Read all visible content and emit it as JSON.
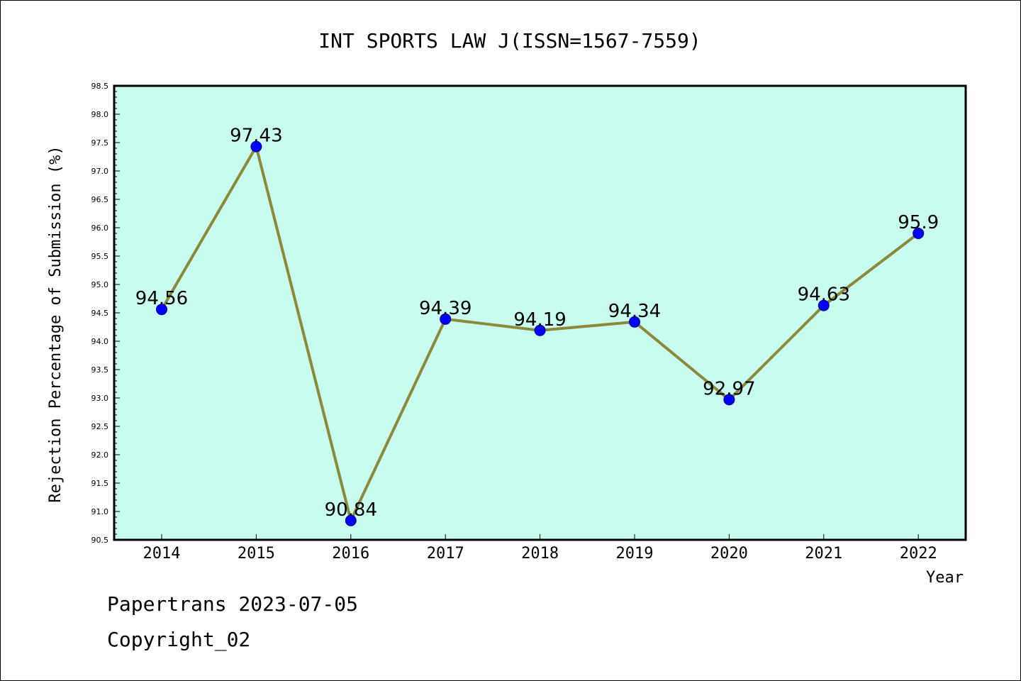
{
  "chart_data": {
    "type": "line",
    "title": "INT SPORTS LAW J(ISSN=1567-7559)",
    "xlabel": "Year",
    "ylabel": "Rejection Percentage of Submission (%)",
    "categories": [
      "2014",
      "2015",
      "2016",
      "2017",
      "2018",
      "2019",
      "2020",
      "2021",
      "2022"
    ],
    "series": [
      {
        "values": [
          94.56,
          97.43,
          90.84,
          94.39,
          94.19,
          94.34,
          92.97,
          94.63,
          95.9
        ],
        "labels": [
          "94.56",
          "97.43",
          "90.84",
          "94.39",
          "94.19",
          "94.34",
          "92.97",
          "94.63",
          "95.9"
        ],
        "line_color": "#8b8a3a",
        "marker_color": "#0000ff"
      }
    ],
    "ylim": [
      90.5,
      98.5
    ],
    "yticks": [
      "90.5",
      "91.0",
      "91.5",
      "92.0",
      "92.5",
      "93.0",
      "93.5",
      "94.0",
      "94.5",
      "95.0",
      "95.5",
      "96.0",
      "96.5",
      "97.0",
      "97.5",
      "98.0",
      "98.5"
    ],
    "plot_background": "#c8fcee",
    "grid": false
  },
  "footer": {
    "line1": "Papertrans 2023-07-05",
    "line2": "Copyright_02"
  }
}
